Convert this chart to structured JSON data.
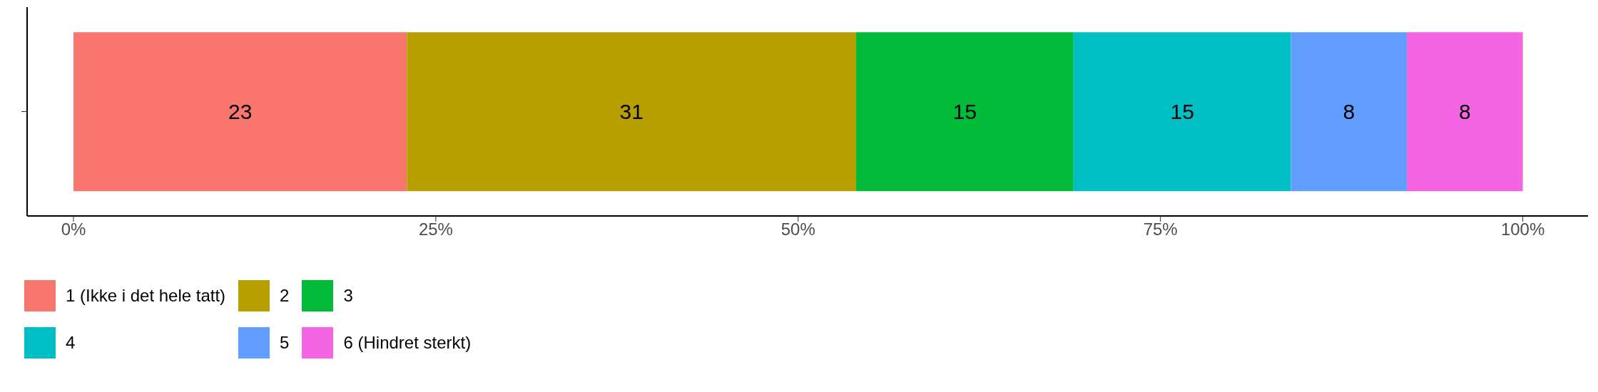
{
  "chart_data": {
    "type": "bar",
    "orientation": "horizontal",
    "stacked": true,
    "categories": [
      null
    ],
    "series": [
      {
        "name": "1 (Ikke i det hele tatt)",
        "color": "#f8766d",
        "values": [
          23
        ]
      },
      {
        "name": "2",
        "color": "#b79f00",
        "values": [
          31
        ]
      },
      {
        "name": "3",
        "color": "#00ba38",
        "values": [
          15
        ]
      },
      {
        "name": "4",
        "color": "#00bfc4",
        "values": [
          15
        ]
      },
      {
        "name": "5",
        "color": "#619cff",
        "values": [
          8
        ]
      },
      {
        "name": "6 (Hindret sterkt)",
        "color": "#f564e3",
        "values": [
          8
        ]
      }
    ],
    "xlim": [
      -3.2,
      104.5
    ],
    "xticks": [
      {
        "value": 0,
        "label": "0%"
      },
      {
        "value": 25,
        "label": "25%"
      },
      {
        "value": 50,
        "label": "50%"
      },
      {
        "value": 75,
        "label": "75%"
      },
      {
        "value": 100,
        "label": "100%"
      }
    ],
    "data_labels": true,
    "legend": "bottom left",
    "grid": false
  }
}
